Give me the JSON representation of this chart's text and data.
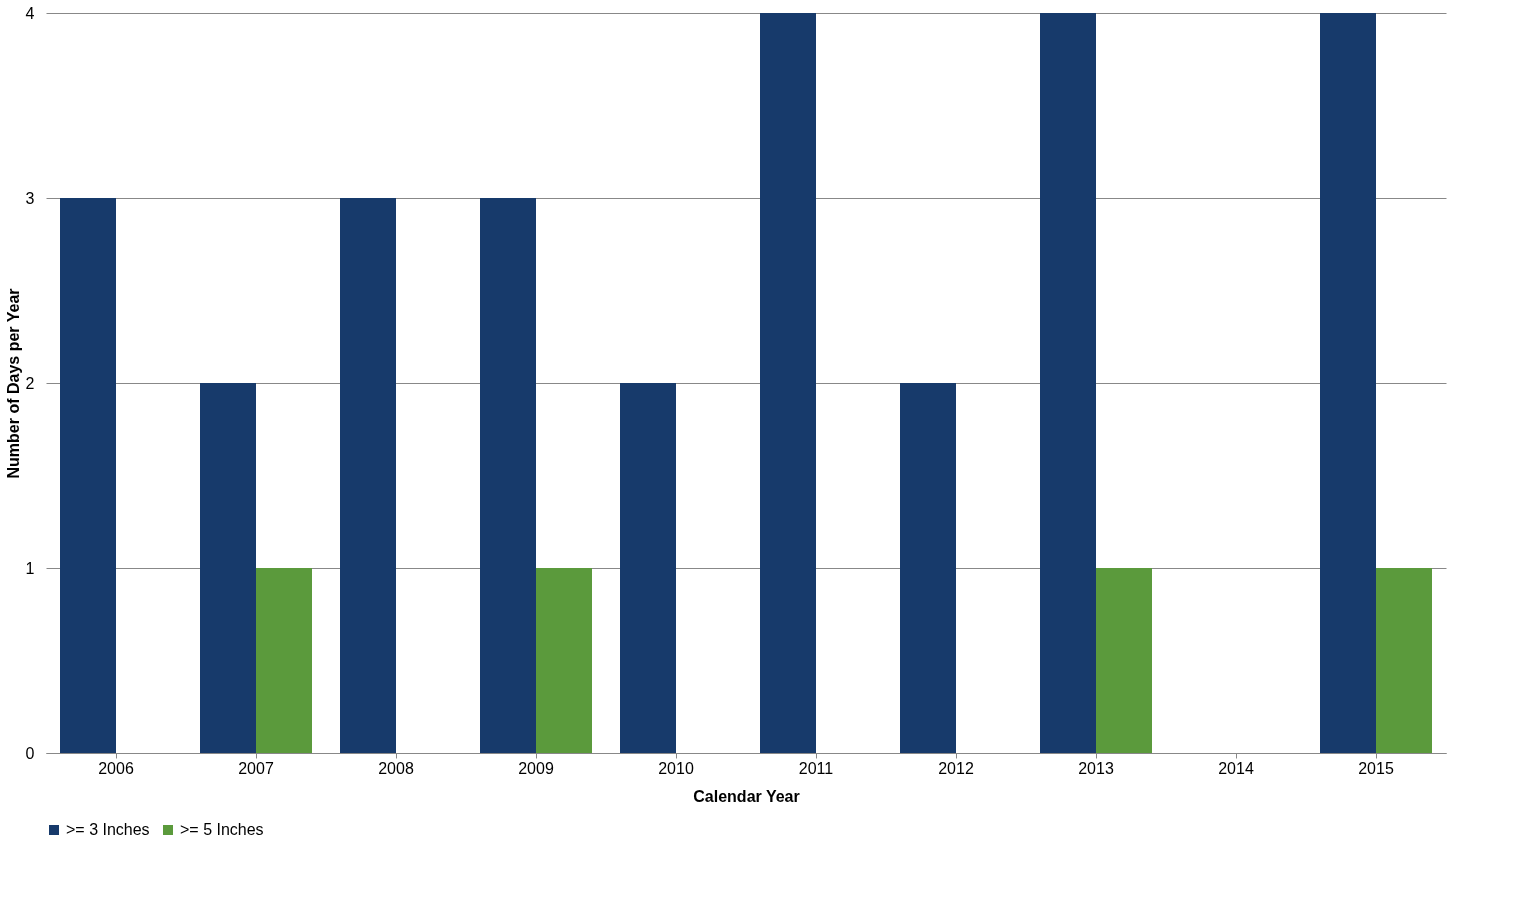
{
  "chart_data": {
    "type": "bar",
    "xlabel": "Calendar Year",
    "ylabel": "Number of Days per Year",
    "categories": [
      "2006",
      "2007",
      "2008",
      "2009",
      "2010",
      "2011",
      "2012",
      "2013",
      "2014",
      "2015"
    ],
    "series": [
      {
        "name": ">= 3 Inches",
        "color": "#173a6b",
        "values": [
          3,
          2,
          3,
          3,
          2,
          4,
          2,
          4,
          0,
          4
        ]
      },
      {
        "name": ">= 5 Inches",
        "color": "#5b9a3c",
        "values": [
          0,
          1,
          0,
          1,
          0,
          0,
          0,
          1,
          0,
          1
        ]
      }
    ],
    "ylim": [
      0,
      4
    ],
    "yticks": [
      0,
      1,
      2,
      3,
      4
    ],
    "grid": "y",
    "legend": "bottom"
  }
}
